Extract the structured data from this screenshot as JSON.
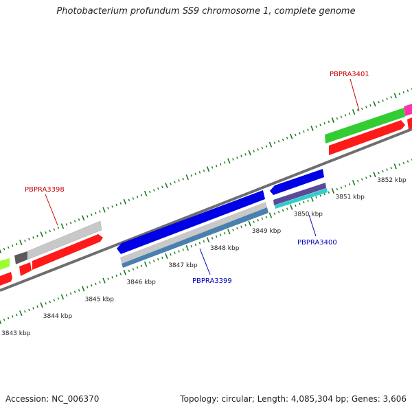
{
  "title": "Photobacterium profundum SS9 chromosome 1, complete genome",
  "footer": {
    "accession": "Accession: NC_006370",
    "summary": "Topology: circular; Length: 4,085,304 bp; Genes: 3,606"
  },
  "colors": {
    "backbone": "#6e6e6e",
    "tick": "#1a7a1a",
    "label_forward": "#cc0000",
    "label_reverse": "#0000bb",
    "red_feature": "#ff1a1a",
    "green_feature": "#33cc33",
    "blue_feature": "#0000e6",
    "gray_feature": "#c8c8c8",
    "magenta_feature": "#ff33aa",
    "lime_feature": "#99ff33",
    "steel_feature": "#4a80b0",
    "cyan_feature": "#33cccc",
    "purple_feature": "#5a4a9a"
  },
  "scale_labels": [
    {
      "kbp": 3843,
      "text": "3843 kbp"
    },
    {
      "kbp": 3844,
      "text": "3844 kbp"
    },
    {
      "kbp": 3845,
      "text": "3845 kbp"
    },
    {
      "kbp": 3846,
      "text": "3846 kbp"
    },
    {
      "kbp": 3847,
      "text": "3847 kbp"
    },
    {
      "kbp": 3848,
      "text": "3848 kbp"
    },
    {
      "kbp": 3849,
      "text": "3849 kbp"
    },
    {
      "kbp": 3850,
      "text": "3850 kbp"
    },
    {
      "kbp": 3851,
      "text": "3851 kbp"
    },
    {
      "kbp": 3852,
      "text": "3852 kbp"
    }
  ],
  "gene_labels": [
    {
      "name": "PBPRA3398",
      "strand": "forward"
    },
    {
      "name": "PBPRA3399",
      "strand": "reverse"
    },
    {
      "name": "PBPRA3400",
      "strand": "reverse"
    },
    {
      "name": "PBPRA3401",
      "strand": "forward"
    }
  ]
}
